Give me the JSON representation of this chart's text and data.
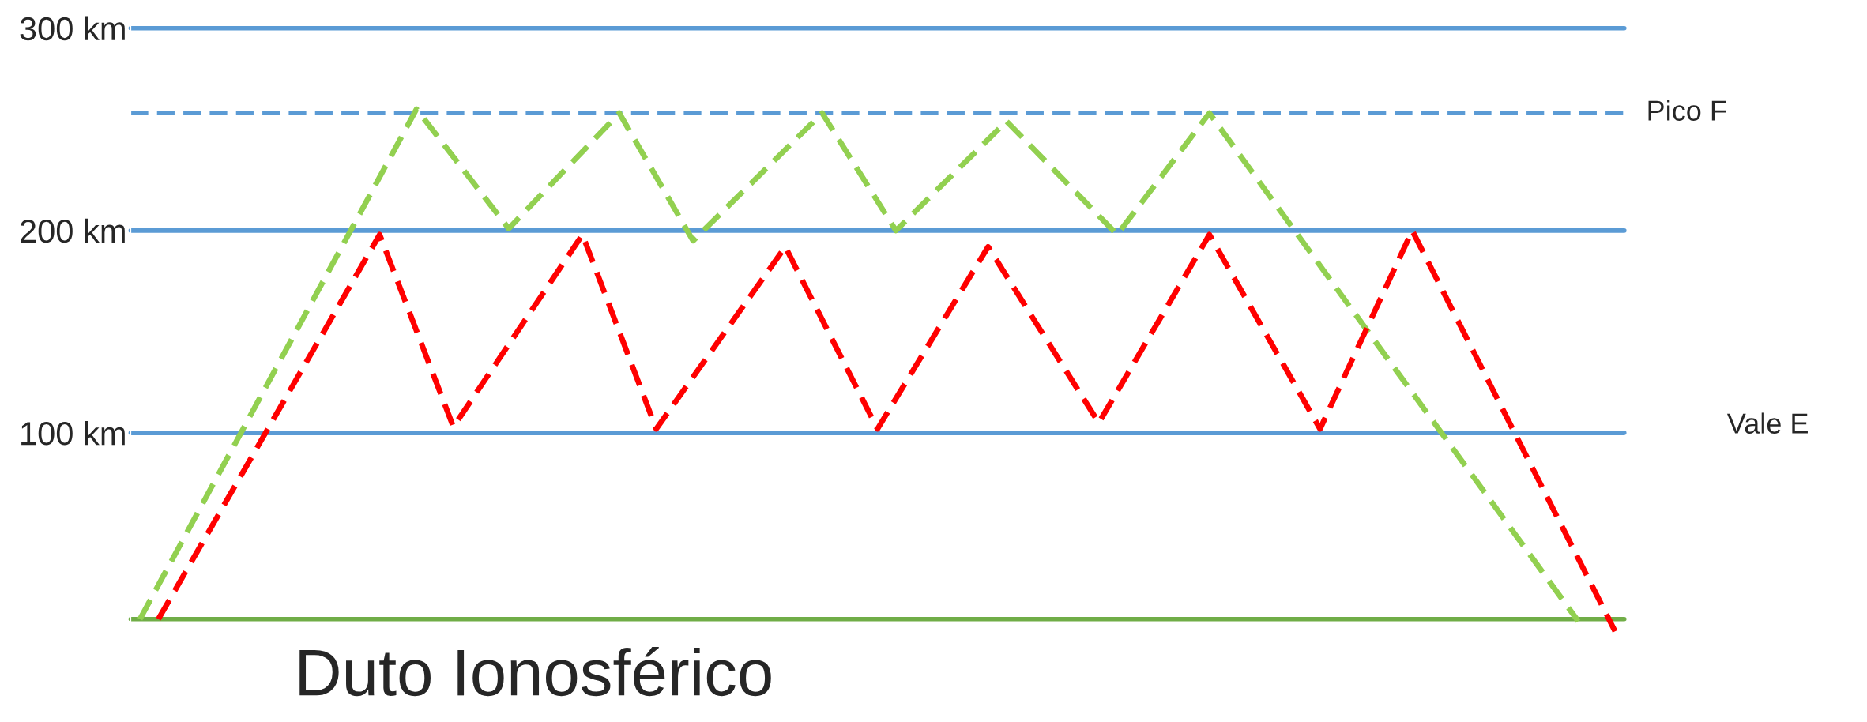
{
  "chart_data": {
    "type": "line",
    "xlabel": "Duto Ionosférico",
    "line_style": "dashed",
    "marker": "none",
    "grid": false,
    "legend": false,
    "tick_labels": "y",
    "categories": [
      null,
      null,
      null,
      null,
      null,
      null,
      null,
      null,
      null,
      null,
      null,
      null,
      null,
      null,
      null,
      null,
      null,
      null,
      null,
      null,
      null,
      null,
      null,
      null,
      null,
      null,
      null,
      null,
      null,
      null,
      null,
      null,
      null,
      null,
      null,
      null,
      null,
      null,
      null,
      null,
      null,
      null,
      null,
      null,
      null,
      null,
      null,
      null,
      null,
      null,
      null,
      null,
      null,
      null,
      null,
      null,
      null,
      null,
      null,
      null,
      null,
      null,
      null,
      null,
      null,
      null,
      null,
      null,
      null,
      null,
      null,
      null,
      null,
      null,
      null,
      null,
      null,
      null,
      null,
      null,
      null
    ],
    "ylim": [
      0,
      305
    ],
    "yticks": [
      {
        "value": 100,
        "label": "100 km"
      },
      {
        "value": 200,
        "label": "200 km"
      },
      {
        "value": 300,
        "label": "300 km"
      }
    ],
    "series": [
      {
        "color": "#92d050",
        "values": [
          8,
          null,
          null,
          null,
          null,
          null,
          null,
          null,
          null,
          null,
          null,
          null,
          null,
          null,
          null,
          260,
          null,
          null,
          null,
          null,
          201,
          null,
          null,
          null,
          null,
          null,
          258,
          null,
          null,
          null,
          195,
          null,
          null,
          null,
          null,
          null,
          null,
          258,
          null,
          null,
          null,
          200,
          null,
          null,
          null,
          null,
          null,
          254,
          null,
          null,
          null,
          null,
          null,
          198,
          null,
          null,
          null,
          null,
          258,
          null,
          null,
          null,
          null,
          null,
          null,
          null,
          null,
          null,
          null,
          null,
          null,
          null,
          null,
          null,
          null,
          null,
          null,
          null,
          7,
          null,
          null
        ]
      },
      {
        "color": "#ff0000",
        "values": [
          null,
          8,
          null,
          null,
          null,
          null,
          null,
          null,
          null,
          null,
          null,
          null,
          null,
          198,
          null,
          null,
          null,
          103,
          null,
          null,
          null,
          null,
          null,
          null,
          198,
          null,
          null,
          null,
          102,
          null,
          null,
          null,
          null,
          null,
          null,
          192,
          null,
          null,
          null,
          null,
          102,
          null,
          null,
          null,
          null,
          null,
          192,
          null,
          null,
          null,
          null,
          null,
          105,
          null,
          null,
          null,
          null,
          null,
          198,
          null,
          null,
          null,
          null,
          null,
          102,
          null,
          null,
          null,
          null,
          200,
          null,
          null,
          null,
          null,
          null,
          null,
          null,
          null,
          null,
          null,
          2
        ]
      }
    ],
    "ref_lines": [
      {
        "axis": "y",
        "value": 100,
        "color": "#5b9bd5",
        "line_style": "solid"
      },
      {
        "axis": "y",
        "value": 200,
        "color": "#5b9bd5",
        "line_style": "solid"
      },
      {
        "axis": "y",
        "value": 300,
        "color": "#5b9bd5",
        "line_style": "solid"
      },
      {
        "axis": "y",
        "value": 258,
        "color": "#5b9bd5",
        "line_style": "dashed",
        "label": "Pico F"
      },
      {
        "axis": "y",
        "value": 8,
        "color": "#70ad47",
        "line_style": "solid"
      }
    ],
    "annotations": [
      "Vale E"
    ]
  }
}
